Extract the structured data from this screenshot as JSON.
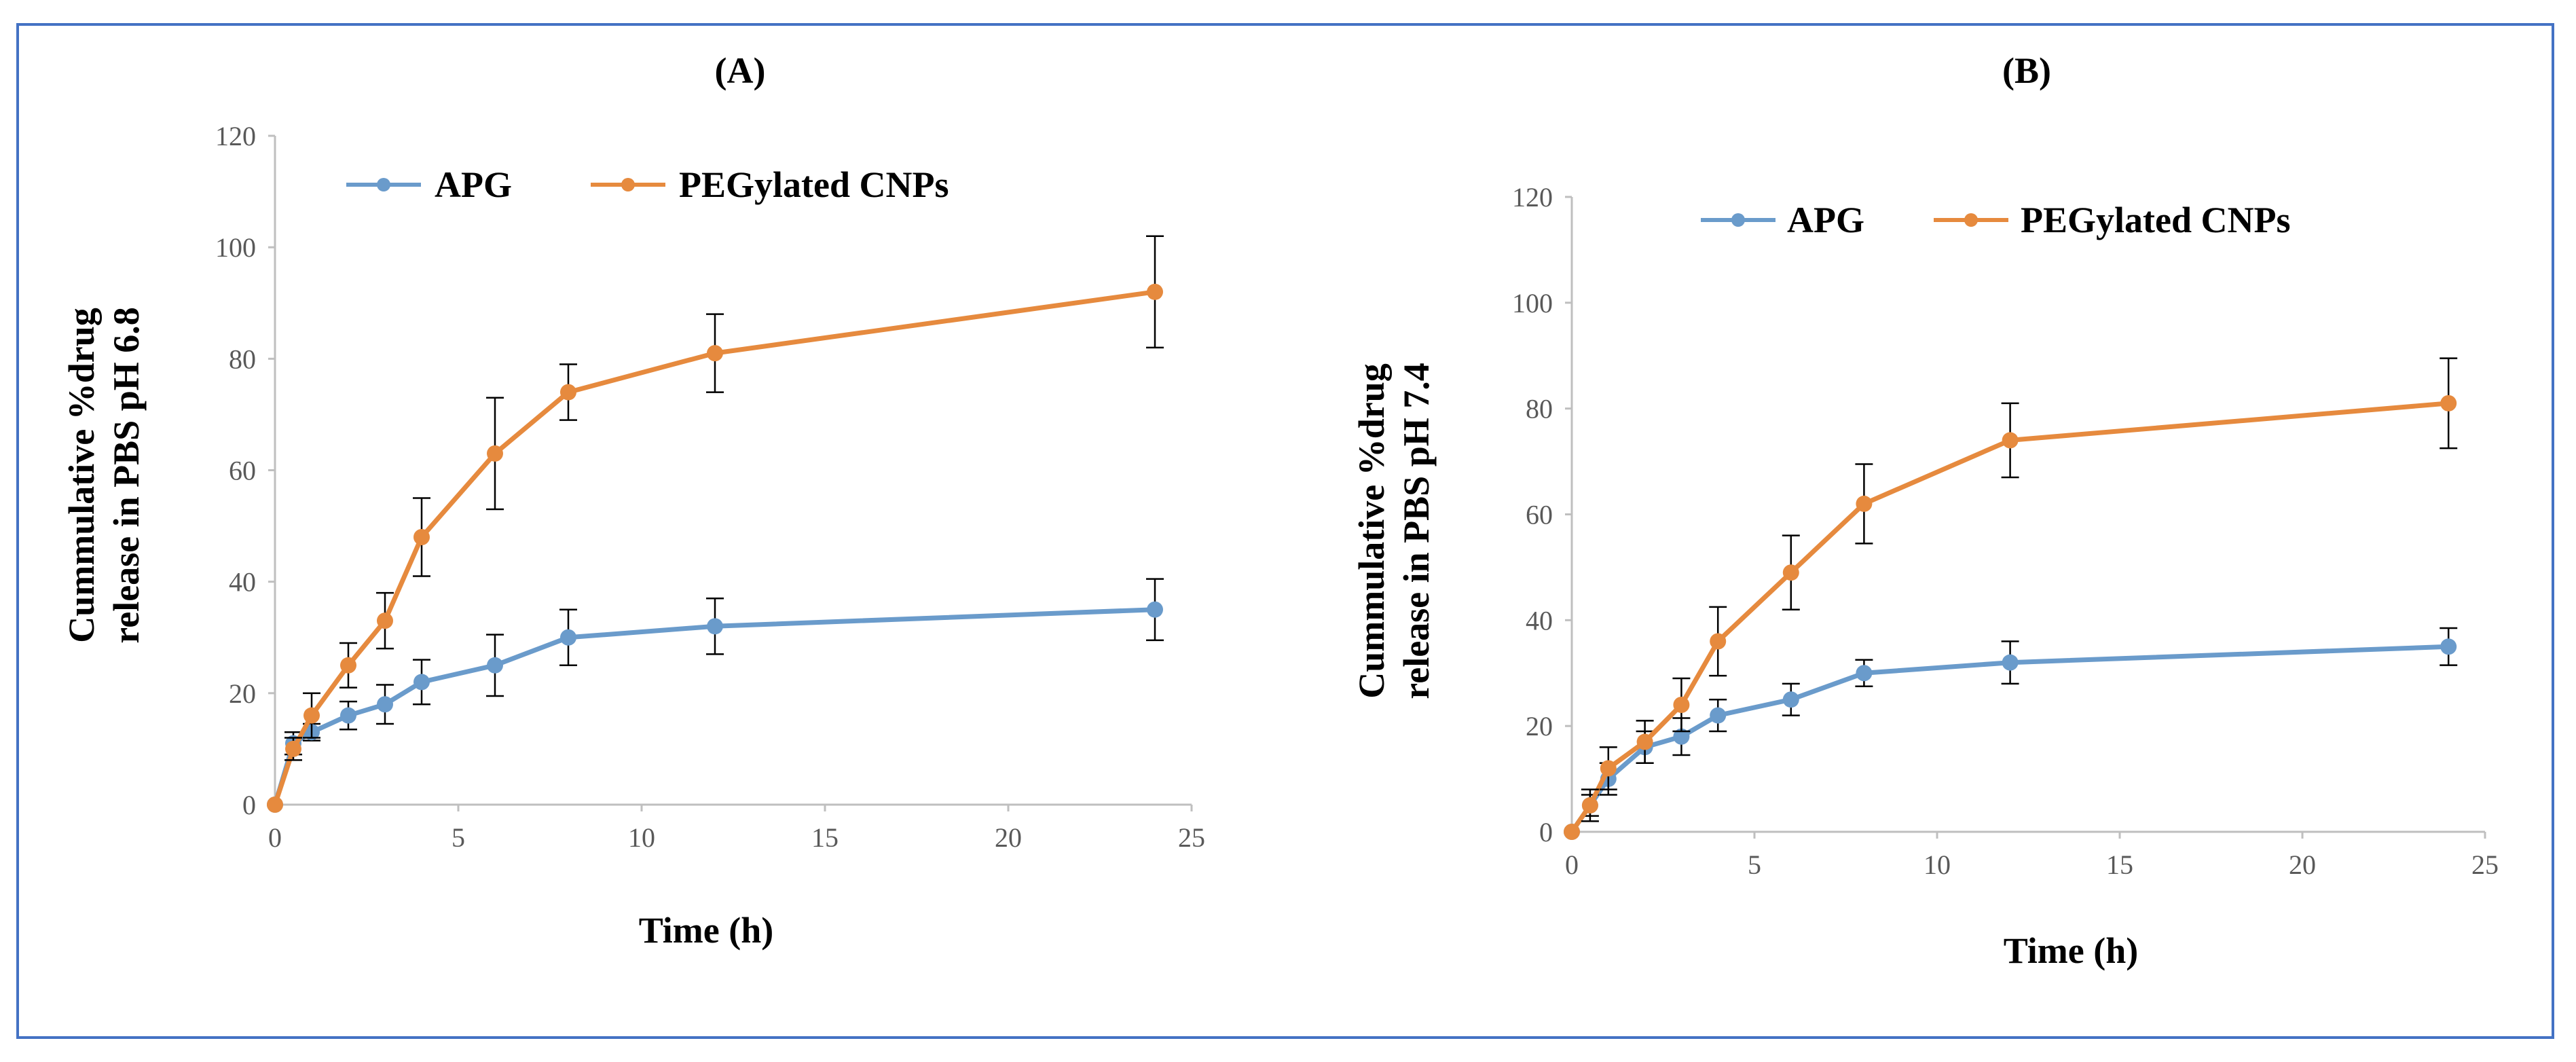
{
  "colors": {
    "frame": "#4472C4",
    "apg": "#6A9BCB",
    "peg": "#E68A3E",
    "axis": "#BFBFBF",
    "error": "#000000",
    "tick": "#595959"
  },
  "chart_data": [
    {
      "type": "line",
      "title": "(A)",
      "xlabel": "Time (h)",
      "ylabel": [
        "Cummulative %drug",
        "release in PBS pH 6.8"
      ],
      "xlim": [
        0,
        25
      ],
      "ylim": [
        0,
        120
      ],
      "xticks": [
        0,
        5,
        10,
        15,
        20,
        25
      ],
      "yticks": [
        0,
        20,
        40,
        60,
        80,
        100,
        120
      ],
      "grid": false,
      "legend": "top",
      "series": [
        {
          "name": "APG",
          "color": "#6A9BCB",
          "x": [
            0,
            0.5,
            1,
            2,
            3,
            4,
            6,
            8,
            12,
            24
          ],
          "y": [
            0,
            11,
            13,
            16,
            18,
            22,
            25,
            30,
            32,
            35
          ],
          "err": [
            0,
            2,
            1.5,
            2.5,
            3.5,
            4,
            5.5,
            5,
            5,
            5.5
          ]
        },
        {
          "name": "PEGylated CNPs",
          "color": "#E68A3E",
          "x": [
            0,
            0.5,
            1,
            2,
            3,
            4,
            6,
            8,
            12,
            24
          ],
          "y": [
            0,
            10,
            16,
            25,
            33,
            48,
            63,
            74,
            81,
            92
          ],
          "err": [
            0,
            2,
            4,
            4,
            5,
            7,
            10,
            5,
            7,
            10
          ]
        }
      ]
    },
    {
      "type": "line",
      "title": "(B)",
      "xlabel": "Time (h)",
      "ylabel": [
        "Cummulative %drug",
        "release in PBS pH 7.4"
      ],
      "xlim": [
        0,
        25
      ],
      "ylim": [
        0,
        120
      ],
      "xticks": [
        0,
        5,
        10,
        15,
        20,
        25
      ],
      "yticks": [
        0,
        20,
        40,
        60,
        80,
        100,
        120
      ],
      "grid": false,
      "legend": "top",
      "series": [
        {
          "name": "APG",
          "color": "#6A9BCB",
          "x": [
            0,
            0.5,
            1,
            2,
            3,
            4,
            6,
            8,
            12,
            24
          ],
          "y": [
            0,
            5,
            10,
            16,
            18,
            22,
            25,
            30,
            32,
            35
          ],
          "err": [
            0,
            2,
            3,
            3,
            3.5,
            3,
            3,
            2.5,
            4,
            3.5
          ]
        },
        {
          "name": "PEGylated CNPs",
          "color": "#E68A3E",
          "x": [
            0,
            0.5,
            1,
            2,
            3,
            4,
            6,
            8,
            12,
            24
          ],
          "y": [
            0,
            5,
            12,
            17,
            24,
            36,
            49,
            62,
            74,
            81
          ],
          "err": [
            0,
            3,
            4,
            4,
            5,
            6.5,
            7,
            7.5,
            7,
            8.5
          ]
        }
      ]
    }
  ]
}
